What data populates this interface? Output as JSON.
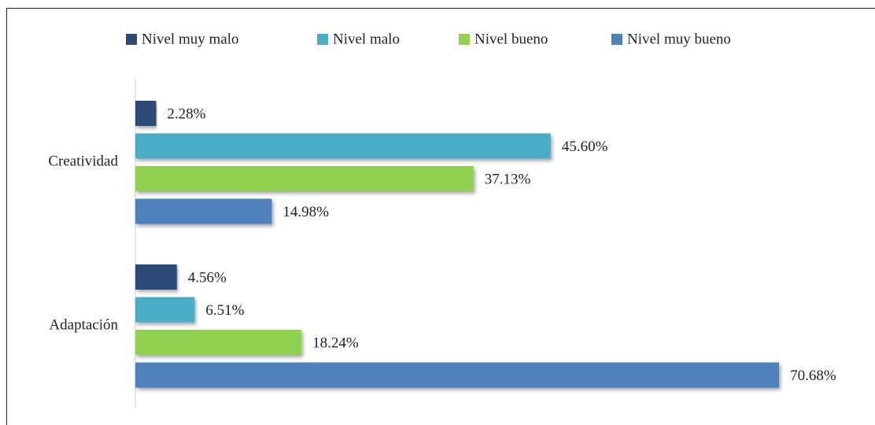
{
  "chart_data": {
    "type": "bar",
    "orientation": "horizontal",
    "categories": [
      "Creatividad",
      "Adaptación"
    ],
    "series": [
      {
        "name": "Nivel muy malo",
        "color": "#2e4a74",
        "values": [
          2.28,
          4.56
        ],
        "value_labels": [
          "2.28%",
          "4.56%"
        ]
      },
      {
        "name": "Nivel malo",
        "color": "#4bacc6",
        "values": [
          45.6,
          6.51
        ],
        "value_labels": [
          "45.60%",
          "6.51%"
        ]
      },
      {
        "name": "Nivel bueno",
        "color": "#92d050",
        "values": [
          37.13,
          18.24
        ],
        "value_labels": [
          "37.13%",
          "18.24%"
        ]
      },
      {
        "name": "Nivel muy bueno",
        "color": "#4f81bd",
        "values": [
          14.98,
          70.68
        ],
        "value_labels": [
          "14.98%",
          "70.68%"
        ]
      }
    ],
    "xlim": [
      0,
      80
    ],
    "legend": "top"
  }
}
